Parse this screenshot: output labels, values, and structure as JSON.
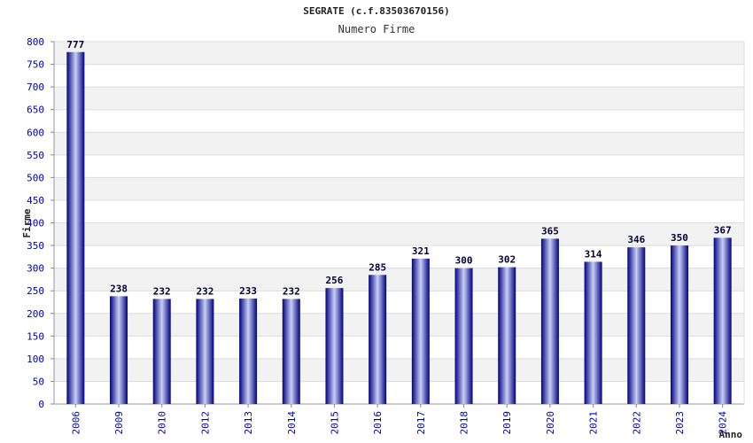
{
  "chart_data": {
    "type": "bar",
    "title": "SEGRATE (c.f.83503670156)",
    "subtitle": "Numero Firme",
    "xlabel": "Anno",
    "ylabel": "Firme",
    "categories": [
      "2006",
      "2009",
      "2010",
      "2012",
      "2013",
      "2014",
      "2015",
      "2016",
      "2017",
      "2018",
      "2019",
      "2020",
      "2021",
      "2022",
      "2023",
      "2024"
    ],
    "values": [
      777,
      238,
      232,
      232,
      233,
      232,
      256,
      285,
      321,
      300,
      302,
      365,
      314,
      346,
      350,
      367
    ],
    "ylim": [
      0,
      800
    ],
    "yticks": [
      0,
      50,
      100,
      150,
      200,
      250,
      300,
      350,
      400,
      450,
      500,
      550,
      600,
      650,
      700,
      750,
      800
    ],
    "grid": true,
    "colors": {
      "bar_dark": "#000080",
      "bar_light": "#c8cff5",
      "band": "#f2f2f2",
      "tick_text": "#0000aa"
    }
  }
}
